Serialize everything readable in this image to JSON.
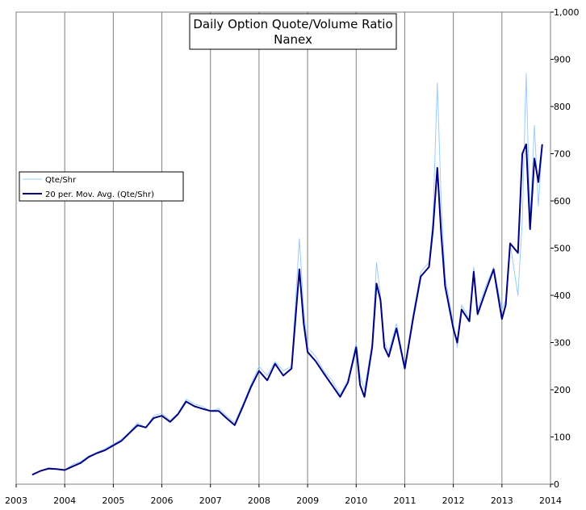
{
  "chart_data": {
    "type": "line",
    "title": "Daily Option Quote/Volume Ratio",
    "subtitle": "Nanex",
    "xlabel": "",
    "ylabel": "",
    "x_ticks": [
      "2003",
      "2004",
      "2005",
      "2006",
      "2007",
      "2008",
      "2009",
      "2010",
      "2011",
      "2012",
      "2013",
      "2014"
    ],
    "y_ticks": [
      "0",
      "100",
      "200",
      "300",
      "400",
      "500",
      "600",
      "700",
      "800",
      "900",
      "1,000"
    ],
    "xlim": [
      2003,
      2014
    ],
    "ylim": [
      0,
      1000
    ],
    "grid": "vertical",
    "y_axis_side": "right",
    "legend_placement": "left",
    "colors": {
      "daily": "#99ccff",
      "avg": "#000080"
    },
    "series": [
      {
        "name": "Qte/Shr",
        "style": "daily",
        "x": [
          2003.33,
          2003.5,
          2003.67,
          2003.83,
          2004.0,
          2004.17,
          2004.33,
          2004.5,
          2004.67,
          2004.83,
          2005.0,
          2005.17,
          2005.33,
          2005.5,
          2005.67,
          2005.83,
          2006.0,
          2006.17,
          2006.33,
          2006.5,
          2006.67,
          2006.83,
          2007.0,
          2007.17,
          2007.33,
          2007.5,
          2007.67,
          2007.83,
          2008.0,
          2008.17,
          2008.33,
          2008.5,
          2008.67,
          2008.83,
          2008.92,
          2009.0,
          2009.17,
          2009.33,
          2009.5,
          2009.67,
          2009.83,
          2010.0,
          2010.08,
          2010.17,
          2010.33,
          2010.42,
          2010.5,
          2010.58,
          2010.67,
          2010.83,
          2011.0,
          2011.17,
          2011.33,
          2011.5,
          2011.58,
          2011.67,
          2011.75,
          2011.83,
          2012.0,
          2012.08,
          2012.17,
          2012.33,
          2012.42,
          2012.5,
          2012.67,
          2012.83,
          2013.0,
          2013.08,
          2013.17,
          2013.33,
          2013.42,
          2013.5,
          2013.58,
          2013.67,
          2013.75,
          2013.83
        ],
        "y": [
          20,
          28,
          35,
          32,
          30,
          42,
          48,
          60,
          68,
          75,
          85,
          95,
          110,
          130,
          120,
          145,
          150,
          135,
          150,
          180,
          170,
          165,
          155,
          160,
          145,
          130,
          170,
          210,
          250,
          230,
          260,
          240,
          250,
          520,
          370,
          290,
          270,
          240,
          220,
          190,
          220,
          300,
          230,
          200,
          300,
          470,
          400,
          300,
          280,
          340,
          250,
          360,
          450,
          470,
          560,
          850,
          600,
          440,
          340,
          290,
          380,
          350,
          460,
          370,
          420,
          460,
          370,
          390,
          510,
          400,
          560,
          870,
          560,
          760,
          590,
          720
        ]
      },
      {
        "name": "20 per. Mov. Avg. (Qte/Shr)",
        "style": "avg",
        "x": [
          2003.33,
          2003.5,
          2003.67,
          2003.83,
          2004.0,
          2004.17,
          2004.33,
          2004.5,
          2004.67,
          2004.83,
          2005.0,
          2005.17,
          2005.33,
          2005.5,
          2005.67,
          2005.83,
          2006.0,
          2006.17,
          2006.33,
          2006.5,
          2006.67,
          2006.83,
          2007.0,
          2007.17,
          2007.33,
          2007.5,
          2007.67,
          2007.83,
          2008.0,
          2008.17,
          2008.33,
          2008.5,
          2008.67,
          2008.83,
          2008.92,
          2009.0,
          2009.17,
          2009.33,
          2009.5,
          2009.67,
          2009.83,
          2010.0,
          2010.08,
          2010.17,
          2010.33,
          2010.42,
          2010.5,
          2010.58,
          2010.67,
          2010.83,
          2011.0,
          2011.17,
          2011.33,
          2011.5,
          2011.58,
          2011.67,
          2011.75,
          2011.83,
          2012.0,
          2012.08,
          2012.17,
          2012.33,
          2012.42,
          2012.5,
          2012.67,
          2012.83,
          2013.0,
          2013.08,
          2013.17,
          2013.33,
          2013.42,
          2013.5,
          2013.58,
          2013.67,
          2013.75,
          2013.83
        ],
        "y": [
          20,
          28,
          33,
          32,
          30,
          38,
          45,
          58,
          66,
          72,
          82,
          92,
          108,
          125,
          120,
          140,
          145,
          132,
          148,
          175,
          165,
          160,
          155,
          155,
          140,
          125,
          165,
          205,
          240,
          220,
          255,
          230,
          245,
          455,
          340,
          280,
          260,
          235,
          210,
          185,
          215,
          290,
          210,
          185,
          290,
          425,
          390,
          290,
          270,
          330,
          245,
          350,
          440,
          460,
          540,
          670,
          530,
          420,
          330,
          300,
          370,
          345,
          450,
          360,
          410,
          455,
          350,
          380,
          510,
          490,
          700,
          720,
          540,
          690,
          640,
          720
        ]
      }
    ]
  }
}
